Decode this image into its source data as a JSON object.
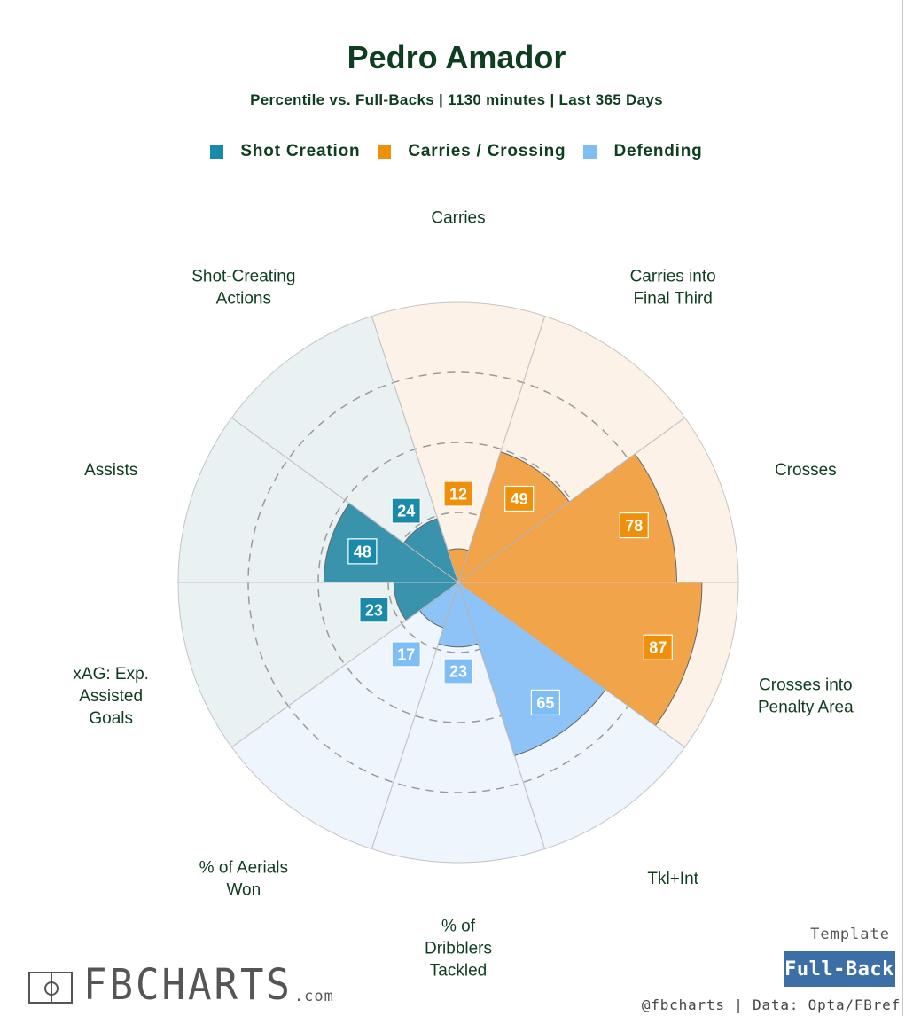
{
  "header": {
    "title": "Pedro Amador",
    "subtitle": "Percentile vs. Full-Backs | 1130 minutes | Last 365 Days"
  },
  "legend": [
    {
      "label": "Shot Creation",
      "color": "#1a8aaa"
    },
    {
      "label": "Carries / Crossing",
      "color": "#f0900a"
    },
    {
      "label": "Defending",
      "color": "#7fbdf5"
    }
  ],
  "chart_data": {
    "type": "polar-bar",
    "title": "Pedro Amador",
    "subtitle": "Percentile vs. Full-Backs | 1130 minutes | Last 365 Days",
    "rlim": [
      0,
      100
    ],
    "grid_rings": [
      25,
      50,
      75
    ],
    "categories": [
      {
        "label": "Carries",
        "value": 12,
        "group": "Carries / Crossing"
      },
      {
        "label": "Carries into Final Third",
        "value": 49,
        "group": "Carries / Crossing"
      },
      {
        "label": "Crosses",
        "value": 78,
        "group": "Carries / Crossing"
      },
      {
        "label": "Crosses into Penalty Area",
        "value": 87,
        "group": "Carries / Crossing"
      },
      {
        "label": "Tkl+Int",
        "value": 65,
        "group": "Defending"
      },
      {
        "label": "% of Dribblers Tackled",
        "value": 23,
        "group": "Defending"
      },
      {
        "label": "% of Aerials Won",
        "value": 17,
        "group": "Defending"
      },
      {
        "label": "xAG: Exp. Assisted Goals",
        "value": 23,
        "group": "Shot Creation"
      },
      {
        "label": "Assists",
        "value": 48,
        "group": "Shot Creation"
      },
      {
        "label": "Shot-Creating Actions",
        "value": 24,
        "group": "Shot Creation"
      }
    ],
    "groups": [
      {
        "name": "Shot Creation",
        "color": "#1a8aaa",
        "bar_color": "#3a93ad",
        "bg": "#e9f1f3"
      },
      {
        "name": "Carries / Crossing",
        "color": "#f0900a",
        "bar_color": "#f2a44a",
        "bg": "#fdf2e8"
      },
      {
        "name": "Defending",
        "color": "#7fbdf5",
        "bar_color": "#8ec3f7",
        "bg": "#eef5fc"
      }
    ]
  },
  "footer": {
    "template_label": "Template",
    "template_value": "Full-Back",
    "credit": "@fbcharts | Data: Opta/FBref",
    "logo_text": "FBCHARTS",
    "logo_suffix": ".com"
  }
}
